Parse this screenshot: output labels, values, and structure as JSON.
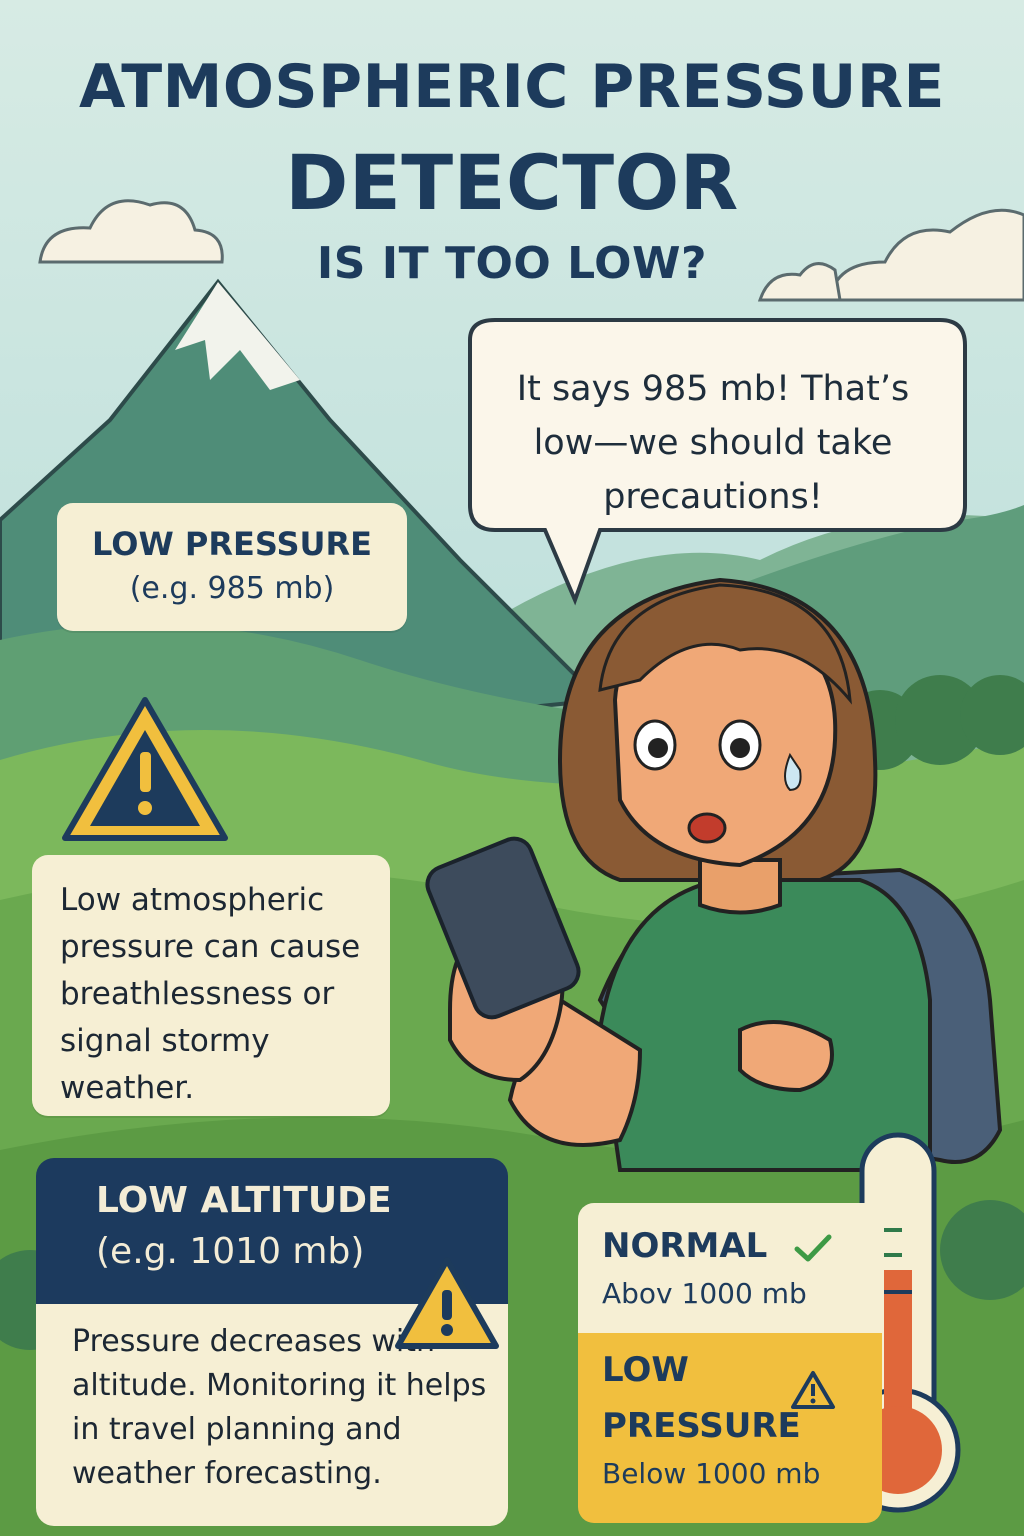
{
  "header": {
    "line1": "ATMOSPHERIC PRESSURE",
    "line2": "DETECTOR",
    "line3": "IS IT TOO LOW?"
  },
  "speech": {
    "line1": "It says 985 mb! That’s",
    "line2": "low—we should take",
    "line3": "precautions!"
  },
  "low_pressure_card": {
    "title": "LOW PRESSURE",
    "subtitle": "(e.g. 985 mb)"
  },
  "warning_card": {
    "text": "Low atmospheric pressure can cause breathlessness or signal stormy weather."
  },
  "altitude_card": {
    "title": "LOW ALTITUDE",
    "subtitle": "(e.g. 1010 mb)",
    "text": "Pressure decreases with altitude. Monitoring it helps in travel planning and weather forecasting."
  },
  "legend": {
    "normal_title": "NORMAL",
    "normal_sub": "Abov 1000 mb",
    "low_title_1": "LOW",
    "low_title_2": "PRESSURE",
    "low_sub": "Below 1000 mb"
  },
  "icons": {
    "warning": "warning-icon",
    "check": "check-icon",
    "phone": "phone-icon",
    "thermometer": "thermometer-icon"
  },
  "colors": {
    "navy": "#1d3b5c",
    "cream": "#f6efd4",
    "warning_yellow": "#f1bf3e",
    "check_green": "#3d9a45",
    "thermo_red": "#e0673a"
  }
}
